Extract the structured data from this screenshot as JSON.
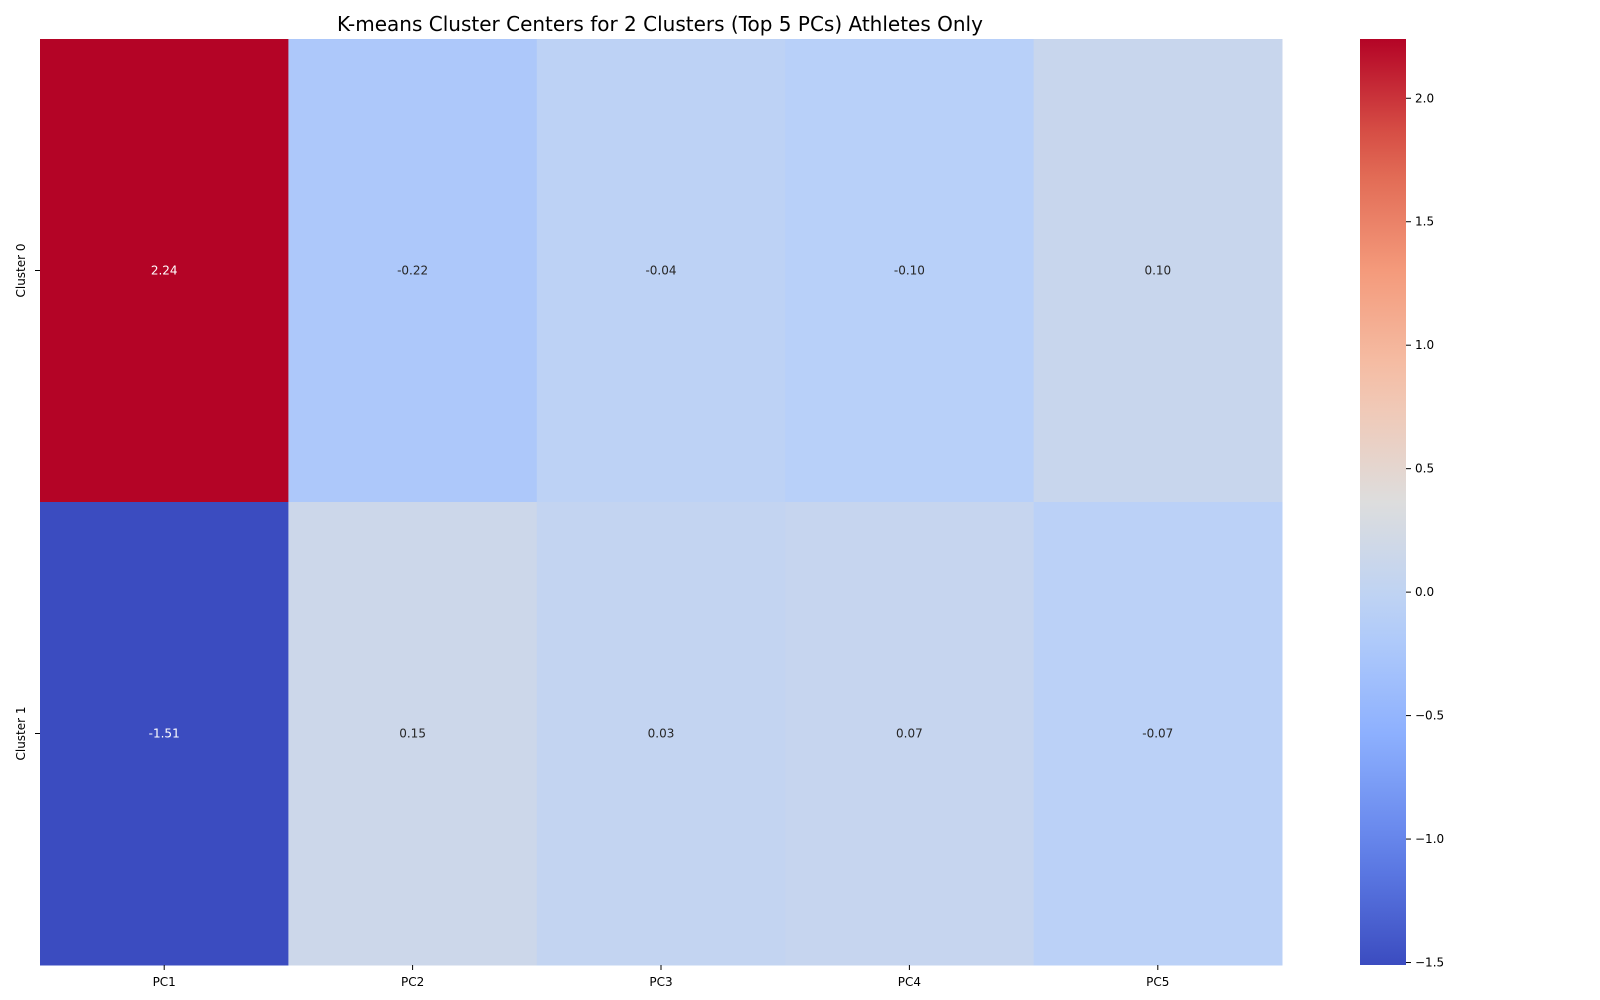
{
  "chart_data": {
    "type": "heatmap",
    "title": "K-means Cluster Centers for 2 Clusters (Top 5 PCs) Athletes Only",
    "x_categories": [
      "PC1",
      "PC2",
      "PC3",
      "PC4",
      "PC5"
    ],
    "y_categories": [
      "Cluster 0",
      "Cluster 1"
    ],
    "values": [
      [
        2.24,
        -0.22,
        -0.04,
        -0.1,
        0.1
      ],
      [
        -1.51,
        0.15,
        0.03,
        0.07,
        -0.07
      ]
    ],
    "value_labels": [
      [
        "2.24",
        "-0.22",
        "-0.04",
        "-0.10",
        "0.10"
      ],
      [
        "-1.51",
        "0.15",
        "0.03",
        "0.07",
        "-0.07"
      ]
    ],
    "colormap": "coolwarm",
    "colorbar": {
      "range": [
        -1.51,
        2.24
      ],
      "ticks": [
        2.0,
        1.5,
        1.0,
        0.5,
        0.0,
        -0.5,
        -1.0,
        -1.5
      ],
      "tick_labels": [
        "2.0",
        "1.5",
        "1.0",
        "0.5",
        "0.0",
        "−0.5",
        "−1.0",
        "−1.5"
      ]
    }
  }
}
